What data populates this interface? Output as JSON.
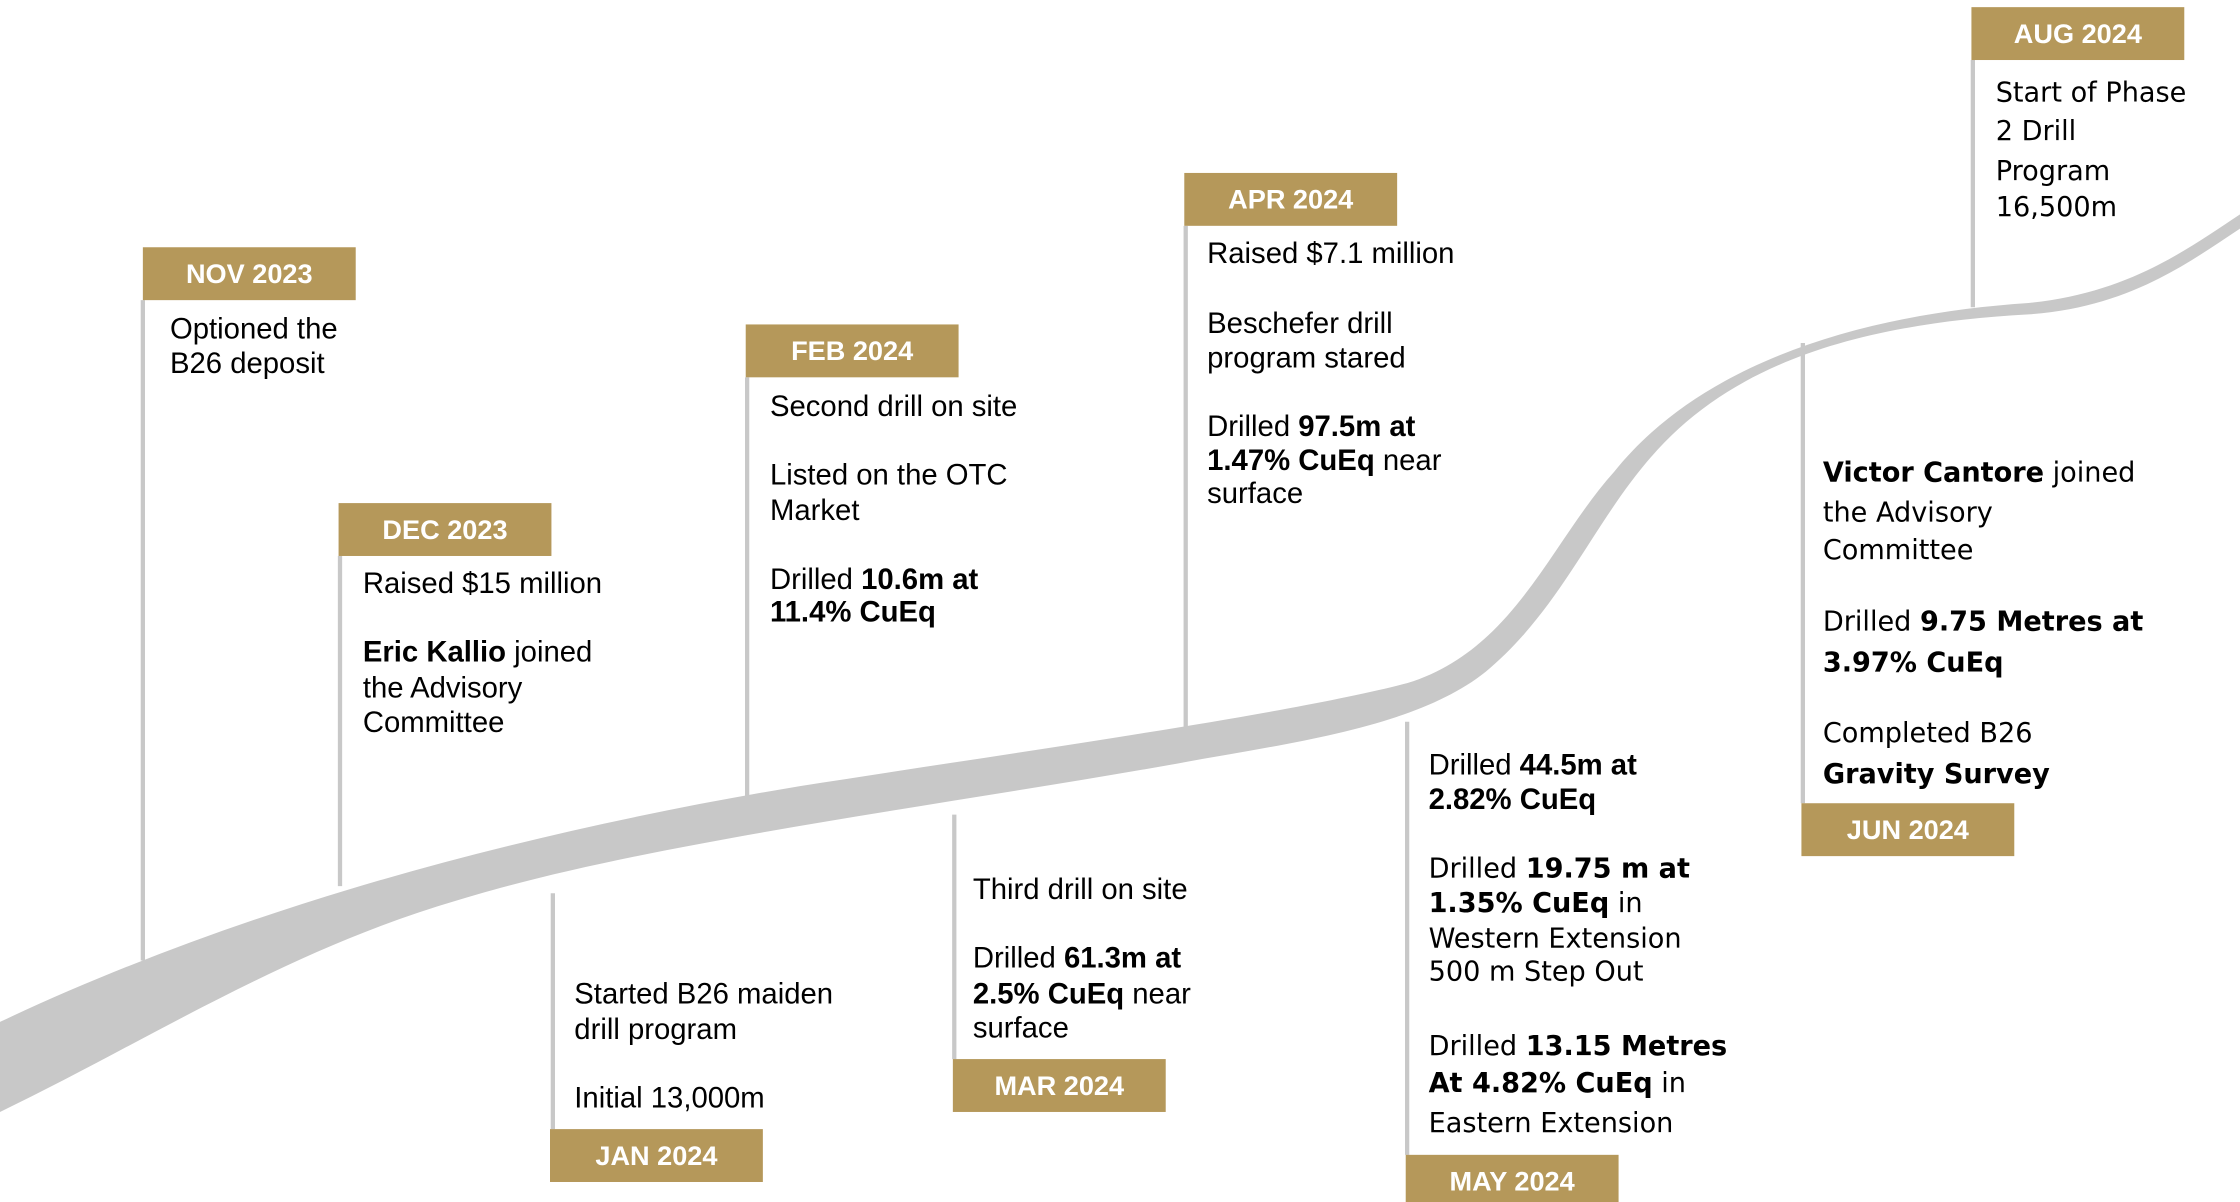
{
  "events": [
    {
      "date": "NOV 2023",
      "lines": [
        [
          {
            "text": "Optioned the"
          }
        ],
        [
          {
            "text": "B26 deposit"
          }
        ]
      ]
    },
    {
      "date": "DEC 2023",
      "lines": [
        [
          {
            "text": "Raised $15 million"
          }
        ],
        [
          {
            "text": "Eric Kallio",
            "bold": true
          },
          {
            "text": " joined"
          }
        ],
        [
          {
            "text": "the Advisory"
          }
        ],
        [
          {
            "text": "Committee"
          }
        ]
      ]
    },
    {
      "date": "JAN 2024",
      "lines": [
        [
          {
            "text": "Started B26 maiden"
          }
        ],
        [
          {
            "text": "drill program"
          }
        ],
        [
          {
            "text": "Initial 13,000m"
          }
        ]
      ]
    },
    {
      "date": "FEB 2024",
      "lines": [
        [
          {
            "text": "Second drill on site"
          }
        ],
        [
          {
            "text": "Listed on the OTC"
          }
        ],
        [
          {
            "text": "Market"
          }
        ],
        [
          {
            "text": "Drilled "
          },
          {
            "text": "10.6m at",
            "bold": true
          }
        ],
        [
          {
            "text": "11.4% CuEq",
            "bold": true
          }
        ]
      ]
    },
    {
      "date": "MAR 2024",
      "lines": [
        [
          {
            "text": "Third drill on site"
          }
        ],
        [
          {
            "text": "Drilled "
          },
          {
            "text": "61.3m at",
            "bold": true
          }
        ],
        [
          {
            "text": "2.5% CuEq",
            "bold": true
          },
          {
            "text": " near"
          }
        ],
        [
          {
            "text": "surface"
          }
        ]
      ]
    },
    {
      "date": "APR 2024",
      "lines": [
        [
          {
            "text": "Raised $7.1 million"
          }
        ],
        [
          {
            "text": "Beschefer drill"
          }
        ],
        [
          {
            "text": "program stared"
          }
        ],
        [
          {
            "text": "Drilled "
          },
          {
            "text": "97.5m at",
            "bold": true
          }
        ],
        [
          {
            "text": "1.47% CuEq",
            "bold": true
          },
          {
            "text": " near"
          }
        ],
        [
          {
            "text": "surface"
          }
        ]
      ]
    },
    {
      "date": "MAY 2024",
      "lines": [
        [
          {
            "text": "Drilled "
          },
          {
            "text": "44.5m at",
            "bold": true
          }
        ],
        [
          {
            "text": "2.82% CuEq",
            "bold": true
          }
        ],
        [
          {
            "text": "Drilled "
          },
          {
            "text": "19.75 m at",
            "bold": true
          }
        ],
        [
          {
            "text": "1.35% CuEq",
            "bold": true
          },
          {
            "text": " in"
          }
        ],
        [
          {
            "text": "Western Extension"
          }
        ],
        [
          {
            "text": "500 m Step Out"
          }
        ],
        [
          {
            "text": "Drilled "
          },
          {
            "text": "13.15 Metres",
            "bold": true
          }
        ],
        [
          {
            "text": "At 4.82% CuEq",
            "bold": true
          },
          {
            "text": " in"
          }
        ],
        [
          {
            "text": "Eastern Extension"
          }
        ]
      ]
    },
    {
      "date": "JUN 2024",
      "lines": [
        [
          {
            "text": "Victor Cantore",
            "bold": true
          },
          {
            "text": " joined"
          }
        ],
        [
          {
            "text": "the Advisory"
          }
        ],
        [
          {
            "text": "Committee"
          }
        ],
        [
          {
            "text": "Drilled "
          },
          {
            "text": "9.75 Metres at",
            "bold": true
          }
        ],
        [
          {
            "text": "3.97% CuEq",
            "bold": true
          }
        ],
        [
          {
            "text": "Completed B26"
          }
        ],
        [
          {
            "text": "Gravity Survey",
            "bold": true
          }
        ]
      ]
    },
    {
      "date": "AUG 2024",
      "lines": [
        [
          {
            "text": "Start of Phase"
          }
        ],
        [
          {
            "text": "2 Drill"
          }
        ],
        [
          {
            "text": "Program"
          }
        ],
        [
          {
            "text": "16,500m"
          }
        ]
      ]
    }
  ]
}
